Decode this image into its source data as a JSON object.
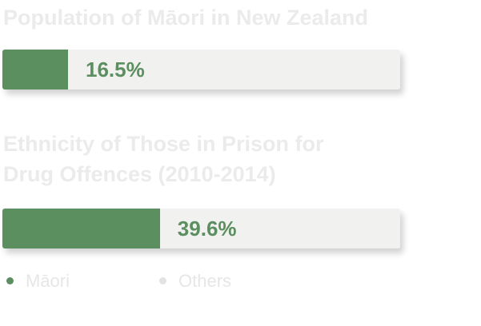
{
  "chart_data": {
    "type": "bar",
    "orientation": "horizontal",
    "stacked": true,
    "categories": [
      "Population of Māori in New Zealand",
      "Ethnicity of Those in Prison for Drug Offences (2010-2014)"
    ],
    "series": [
      {
        "name": "Māori",
        "color": "#5b8f60",
        "values": [
          16.5,
          39.6
        ],
        "value_labels": [
          "16.5%",
          "39.6%"
        ]
      },
      {
        "name": "Others",
        "color": "#f1f1ef",
        "values": [
          83.5,
          60.4
        ]
      }
    ],
    "xlim": [
      0,
      100
    ],
    "legend": "bottom-left"
  }
}
